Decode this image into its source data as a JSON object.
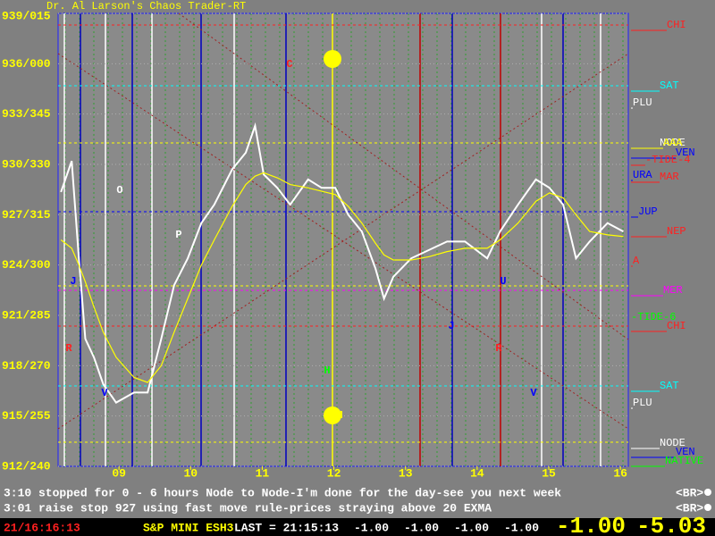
{
  "chart_data": {
    "type": "line",
    "title": "Dr. Al Larson's Chaos Trader-RT",
    "xlim": [
      8.15,
      16.11
    ],
    "xticks": [
      {
        "value": 9,
        "label": "09"
      },
      10,
      11,
      12,
      13,
      14,
      15,
      16
    ],
    "ylim": [
      912,
      939
    ],
    "yticks": [
      {
        "value": 939,
        "label": "939/015"
      },
      {
        "value": 936,
        "label": "936/000"
      },
      {
        "value": 933,
        "label": "933/345"
      },
      {
        "value": 930,
        "label": "930/330"
      },
      {
        "value": 927,
        "label": "927/315"
      },
      {
        "value": 924,
        "label": "924/300"
      },
      {
        "value": 921,
        "label": "921/285"
      },
      {
        "value": 918,
        "label": "918/270"
      },
      {
        "value": 915,
        "label": "915/255"
      },
      {
        "value": 912,
        "label": "912/240"
      }
    ],
    "x": [
      8.19,
      8.34,
      8.44,
      8.53,
      8.65,
      8.78,
      8.96,
      9.21,
      9.4,
      9.59,
      9.77,
      9.96,
      10.15,
      10.33,
      10.58,
      10.77,
      10.9,
      11.02,
      11.21,
      11.39,
      11.64,
      11.83,
      12.02,
      12.2,
      12.39,
      12.58,
      12.7,
      12.83,
      13.08,
      13.33,
      13.58,
      13.83,
      14.14,
      14.32,
      14.57,
      14.82,
      15.01,
      15.2,
      15.38,
      15.57,
      15.82,
      16.04
    ],
    "series": [
      {
        "color": "#ffffff",
        "values": [
          928.35,
          930.2,
          924.4,
          919.6,
          918.5,
          916.9,
          915.8,
          916.4,
          916.4,
          919.6,
          922.8,
          924.4,
          926.5,
          927.6,
          929.7,
          930.7,
          932.3,
          929.4,
          928.6,
          927.6,
          929.1,
          928.6,
          928.6,
          927.0,
          926.0,
          923.8,
          922.0,
          923.3,
          924.4,
          924.9,
          925.4,
          925.4,
          924.4,
          926.0,
          927.6,
          929.1,
          928.6,
          927.6,
          924.4,
          925.4,
          926.5,
          926.0
        ]
      },
      {
        "color": "#ffff00",
        "values": [
          925.5,
          925,
          924,
          923,
          921.5,
          920,
          918.5,
          917.3,
          917,
          918,
          920,
          922,
          924,
          925.5,
          927.5,
          928.8,
          929.3,
          929.5,
          929.2,
          928.8,
          928.6,
          928.4,
          928.2,
          927.5,
          926.5,
          925.3,
          924.6,
          924.3,
          924.3,
          924.5,
          924.8,
          925,
          925,
          925.5,
          926.5,
          927.8,
          928.3,
          928,
          927,
          926,
          925.8,
          925.7
        ]
      }
    ],
    "grid": true,
    "annotations": [
      {
        "text": "CHI",
        "color": "#ff2020"
      },
      {
        "text": "SAT",
        "color": "#00ffff"
      },
      {
        "text": "PLU",
        "color": "#ffffff"
      },
      {
        "text": "NODE",
        "color": "#ffffff"
      },
      {
        "text": "AAA",
        "color": "#ffff00"
      },
      {
        "text": "VEN",
        "color": "#0000ff"
      },
      {
        "text": "-TIDE-4",
        "color": "#ff2020"
      },
      {
        "text": "URA",
        "color": "#0000ff"
      },
      {
        "text": "MAR",
        "color": "#ff2020"
      },
      {
        "text": "JUP",
        "color": "#0000ff"
      },
      {
        "text": "NEP",
        "color": "#ff2020"
      },
      {
        "text": "A",
        "color": "#ff2020"
      },
      {
        "text": "MER",
        "color": "#ff00ff"
      },
      {
        "text": "-TIDE-6",
        "color": "#00ff00"
      },
      {
        "text": "CHI",
        "color": "#ff2020"
      },
      {
        "text": "SAT",
        "color": "#00ffff"
      },
      {
        "text": "PLU",
        "color": "#ffffff"
      },
      {
        "text": "NODE",
        "color": "#ffffff"
      },
      {
        "text": "VEN",
        "color": "#0000ff"
      },
      {
        "text": "NATIVE",
        "color": "#00ff00"
      }
    ],
    "markers": [
      {
        "text": "C",
        "color": "#ff2020"
      },
      {
        "text": "O",
        "color": "#ffffff"
      },
      {
        "text": "P",
        "color": "#ffffff"
      },
      {
        "text": "J",
        "color": "#0000ff"
      },
      {
        "text": "R",
        "color": "#ff2020"
      },
      {
        "text": "V",
        "color": "#0000ff"
      },
      {
        "text": "J",
        "color": "#0000ff"
      },
      {
        "text": "R",
        "color": "#ff2020"
      },
      {
        "text": "U",
        "color": "#0000ff"
      },
      {
        "text": "V",
        "color": "#0000ff"
      },
      {
        "text": "H",
        "color": "#00ff00"
      },
      {
        "text": "M",
        "color": "#ffff00"
      }
    ]
  },
  "messages": [
    "3:10 stopped for 0 - 6 hours Node to Node-I'm done for the day-see you next week",
    "3:01 raise stop 927 using fast move rule-prices straying above 20 EXMA"
  ],
  "buttons": [
    "<BR>",
    "<BR>"
  ],
  "status": {
    "clock": "21/16:16:13",
    "symbol": "S&P MINI ESH3",
    "last": "LAST = 21:15:13",
    "changes": [
      "-1.00",
      "-1.00",
      "-1.00",
      "-1.00"
    ],
    "big": [
      "-1.00",
      "-5.03"
    ]
  }
}
